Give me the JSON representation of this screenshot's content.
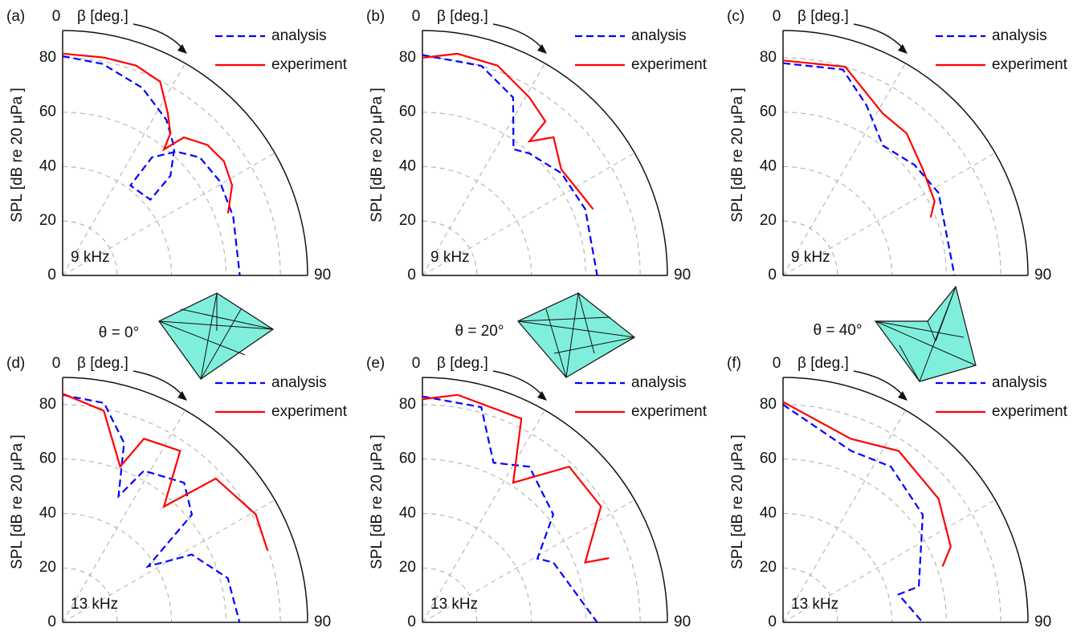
{
  "chart_data": [
    {
      "type": "polar",
      "panel": "(a)",
      "note": "9 kHz",
      "theta_label": "β [deg.]",
      "r_label": "SPL [dB re 20 μPa ]",
      "rlim": [
        0,
        90
      ],
      "rticks": [
        0,
        20,
        40,
        60,
        80
      ],
      "thetalim": [
        0,
        90
      ],
      "thetaticks": [
        0,
        90
      ],
      "thetagrid": [
        30,
        60
      ],
      "grid": true,
      "legend": "upper right",
      "series": [
        {
          "name": "analysis",
          "color": "#0000ff",
          "dash": true,
          "theta": [
            0,
            10.7,
            23,
            33.7,
            41.2,
            47.2,
            49.2,
            37,
            37.1,
            42.5,
            49.3,
            59,
            71,
            90
          ],
          "r": [
            80.6,
            79.1,
            74.9,
            68.7,
            62.3,
            54,
            42.6,
            41.4,
            54.4,
            61.7,
            66.5,
            67.3,
            66.3,
            65.1
          ]
        },
        {
          "name": "experiment",
          "color": "#ff0000",
          "dash": false,
          "theta": [
            0,
            10.8,
            19.3,
            26.7,
            33,
            37.2,
            38.8,
            41.3,
            48,
            54.7,
            62,
            69.4
          ],
          "r": [
            81.5,
            81.5,
            81.7,
            79.7,
            71,
            65.5,
            59.4,
            67.5,
            71.6,
            72.6,
            70.5,
            64.9
          ]
        }
      ]
    },
    {
      "type": "polar",
      "panel": "(b)",
      "note": "9 kHz",
      "theta_label": "β [deg.]",
      "r_label": "SPL [dB re 20 μPa ]",
      "rlim": [
        0,
        90
      ],
      "rticks": [
        0,
        20,
        40,
        60,
        80
      ],
      "thetalim": [
        0,
        90
      ],
      "thetaticks": [
        0,
        90
      ],
      "thetagrid": [
        30,
        60
      ],
      "grid": true,
      "legend": "upper right",
      "series": [
        {
          "name": "analysis",
          "color": "#0000ff",
          "dash": true,
          "theta": [
            0,
            15.7,
            27,
            35.8,
            41.2,
            53.7,
            67.9,
            90
          ],
          "r": [
            81,
            80,
            73.4,
            57.2,
            59.6,
            63.4,
            64.6,
            64.2
          ]
        },
        {
          "name": "experiment",
          "color": "#ff0000",
          "dash": false,
          "theta": [
            0,
            9,
            19.7,
            31,
            38.6,
            38.6,
            43.5,
            52.6,
            61,
            68.8
          ],
          "r": [
            80,
            82.5,
            81.9,
            76.3,
            72.4,
            63,
            70,
            64.2,
            65.1,
            67.3
          ]
        }
      ]
    },
    {
      "type": "polar",
      "panel": "(c)",
      "note": "9 kHz",
      "theta_label": "β [deg.]",
      "r_label": "SPL [dB re 20 μPa ]",
      "rlim": [
        0,
        90
      ],
      "rticks": [
        0,
        20,
        40,
        60,
        80
      ],
      "thetalim": [
        0,
        90
      ],
      "thetaticks": [
        0,
        90
      ],
      "thetagrid": [
        30,
        60
      ],
      "grid": true,
      "legend": "upper right",
      "series": [
        {
          "name": "analysis",
          "color": "#0000ff",
          "dash": true,
          "theta": [
            0,
            16.2,
            26.2,
            37.5,
            50,
            62,
            90
          ],
          "r": [
            78,
            78.8,
            69.6,
            60.2,
            63.1,
            64.7,
            63
          ]
        },
        {
          "name": "experiment",
          "color": "#ff0000",
          "dash": false,
          "theta": [
            0,
            16.6,
            31.6,
            41,
            52.8,
            63.9,
            68.5
          ],
          "r": [
            79,
            80,
            69.9,
            69.2,
            64.5,
            62,
            58.3
          ]
        }
      ]
    },
    {
      "type": "polar",
      "panel": "(d)",
      "note": "13 kHz",
      "theta_label": "β [deg.]",
      "r_label": "SPL [dB re 20 μPa ]",
      "rlim": [
        0,
        90
      ],
      "rticks": [
        0,
        20,
        40,
        60,
        80
      ],
      "thetalim": [
        0,
        90
      ],
      "thetaticks": [
        0,
        90
      ],
      "thetagrid": [
        30,
        60
      ],
      "grid": true,
      "legend": "upper right",
      "series": [
        {
          "name": "analysis",
          "color": "#0000ff",
          "dash": true,
          "theta": [
            0,
            10.7,
            18.9,
            23.9,
            28.2,
            41,
            50.2,
            56.8,
            62.3,
            75,
            90
          ],
          "r": [
            83.6,
            82,
            69.7,
            50.7,
            63.2,
            68,
            61.8,
            37.5,
            53.6,
            62.8,
            65
          ]
        },
        {
          "name": "experiment",
          "color": "#ff0000",
          "dash": false,
          "theta": [
            0,
            11,
            20.3,
            23.9,
            34.4,
            41.2,
            46.8,
            60.8,
            70.7
          ],
          "r": [
            84,
            79.2,
            61,
            73.8,
            76.4,
            56.5,
            77.2,
            81.3,
            79.8
          ]
        }
      ]
    },
    {
      "type": "polar",
      "panel": "(e)",
      "note": "13 kHz",
      "theta_label": "β [deg.]",
      "r_label": "SPL [dB re 20 μPa ]",
      "rlim": [
        0,
        90
      ],
      "rticks": [
        0,
        20,
        40,
        60,
        80
      ],
      "thetalim": [
        0,
        90
      ],
      "thetaticks": [
        0,
        90
      ],
      "thetagrid": [
        30,
        60
      ],
      "grid": true,
      "legend": "upper right",
      "series": [
        {
          "name": "analysis",
          "color": "#0000ff",
          "dash": true,
          "theta": [
            0,
            15.3,
            24,
            34.5,
            50.5,
            61,
            65.4,
            90
          ],
          "r": [
            83,
            82,
            64.2,
            69.4,
            62.3,
            48.3,
            52.9,
            64.2
          ]
        },
        {
          "name": "experiment",
          "color": "#ff0000",
          "dash": false,
          "theta": [
            0,
            8.8,
            25.9,
            33,
            43.3,
            57,
            69.8,
            71
          ],
          "r": [
            82,
            84.6,
            83.2,
            61.2,
            78.6,
            78.2,
            63.7,
            72.5
          ]
        }
      ]
    },
    {
      "type": "polar",
      "panel": "(f)",
      "note": "13 kHz",
      "theta_label": "β [deg.]",
      "r_label": "SPL [dB re 20 μPa ]",
      "rlim": [
        0,
        90
      ],
      "rticks": [
        0,
        20,
        40,
        60,
        80
      ],
      "thetalim": [
        0,
        90
      ],
      "thetaticks": [
        0,
        90
      ],
      "thetagrid": [
        30,
        60
      ],
      "grid": true,
      "legend": "upper right",
      "series": [
        {
          "name": "analysis",
          "color": "#0000ff",
          "dash": true,
          "theta": [
            0,
            21.6,
            34.7,
            52.4,
            75.2,
            76.4,
            90
          ],
          "r": [
            80,
            67.8,
            69.6,
            64.8,
            51.6,
            43.7,
            51.3
          ]
        },
        {
          "name": "experiment",
          "color": "#ff0000",
          "dash": false,
          "theta": [
            0,
            20.3,
            34,
            51.5,
            65.7,
            70.7
          ],
          "r": [
            81,
            71.9,
            76,
            73,
            67.6,
            62.1
          ]
        }
      ]
    }
  ],
  "annotations": [
    "θ = 0°",
    "θ = 20°",
    "θ = 40°"
  ]
}
